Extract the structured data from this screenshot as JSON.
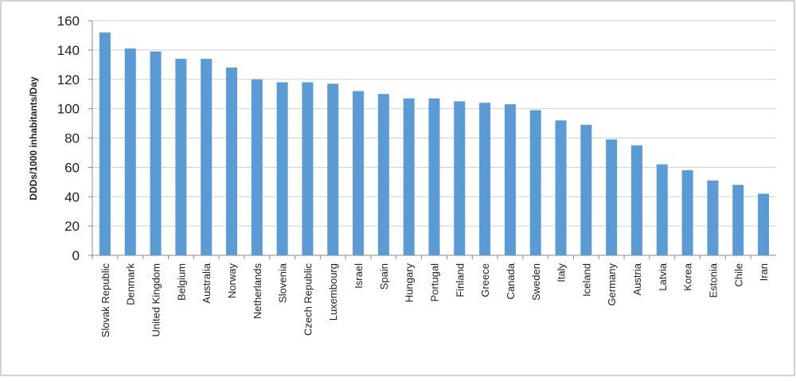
{
  "chart_data": {
    "type": "bar",
    "y_label": "DDDs/1000 inhabitants/Day",
    "categories": [
      "Slovak Republic",
      "Denmark",
      "United Kingdom",
      "Belgium",
      "Australia",
      "Norway",
      "Netherlands",
      "Slovenia",
      "Czech Republic",
      "Luxembourg",
      "Israel",
      "Spain",
      "Hungary",
      "Portugal",
      "Finland",
      "Greece",
      "Canada",
      "Sweden",
      "Italy",
      "Iceland",
      "Germany",
      "Austria",
      "Latvia",
      "Korea",
      "Estonia",
      "Chile",
      "Iran"
    ],
    "values": [
      152,
      141,
      139,
      134,
      134,
      128,
      120,
      118,
      118,
      117,
      112,
      110,
      107,
      107,
      105,
      104,
      103,
      99,
      92,
      89,
      79,
      75,
      62,
      58,
      51,
      48,
      42
    ],
    "color": "#5b9bd5",
    "ylim": [
      0,
      160
    ],
    "yticks": [
      0,
      20,
      40,
      60,
      80,
      100,
      120,
      140,
      160
    ],
    "grid": true
  }
}
